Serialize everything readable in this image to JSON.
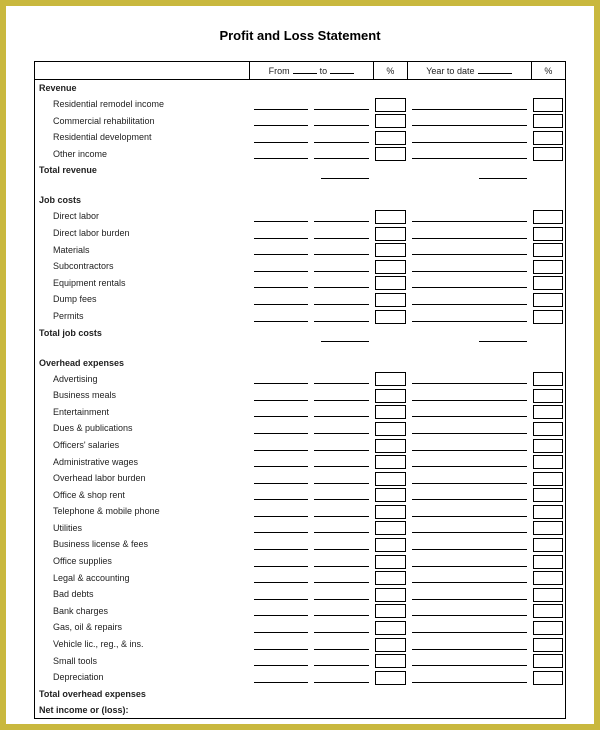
{
  "title": "Profit and Loss Statement",
  "header": {
    "from_label": "From",
    "to_label": "to",
    "pct_label": "%",
    "ytd_label": "Year to date",
    "pct2_label": "%"
  },
  "sections": [
    {
      "heading": "Revenue",
      "items": [
        "Residential remodel income",
        "Commercial rehabilitation",
        "Residential development",
        "Other income"
      ],
      "total_label": "Total revenue"
    },
    {
      "heading": "Job costs",
      "items": [
        "Direct labor",
        "Direct labor burden",
        "Materials",
        "Subcontractors",
        "Equipment rentals",
        "Dump fees",
        "Permits"
      ],
      "total_label": "Total job costs"
    },
    {
      "heading": "Overhead expenses",
      "items": [
        "Advertising",
        "Business meals",
        "Entertainment",
        "Dues & publications",
        "Officers' salaries",
        "Administrative wages",
        "Overhead labor burden",
        "Office & shop rent",
        "Telephone & mobile phone",
        "Utilities",
        "Business license & fees",
        "Office supplies",
        "Legal & accounting",
        "Bad debts",
        "Bank charges",
        "Gas, oil & repairs",
        "Vehicle lic., reg., & ins.",
        "Small tools",
        "Depreciation"
      ],
      "total_label": "Total overhead expenses"
    }
  ],
  "net_label": "Net income or (loss):",
  "styling": {
    "page_bg": "#c9b83e",
    "sheet_bg": "#ffffff",
    "border_color": "#000000",
    "text_color": "#222222",
    "title_fontsize": 13,
    "body_fontsize": 9,
    "columns": {
      "label_width": 188,
      "period_width": 108,
      "pct_width": 30,
      "ytd_width": 108,
      "pct2_width": 30
    }
  }
}
